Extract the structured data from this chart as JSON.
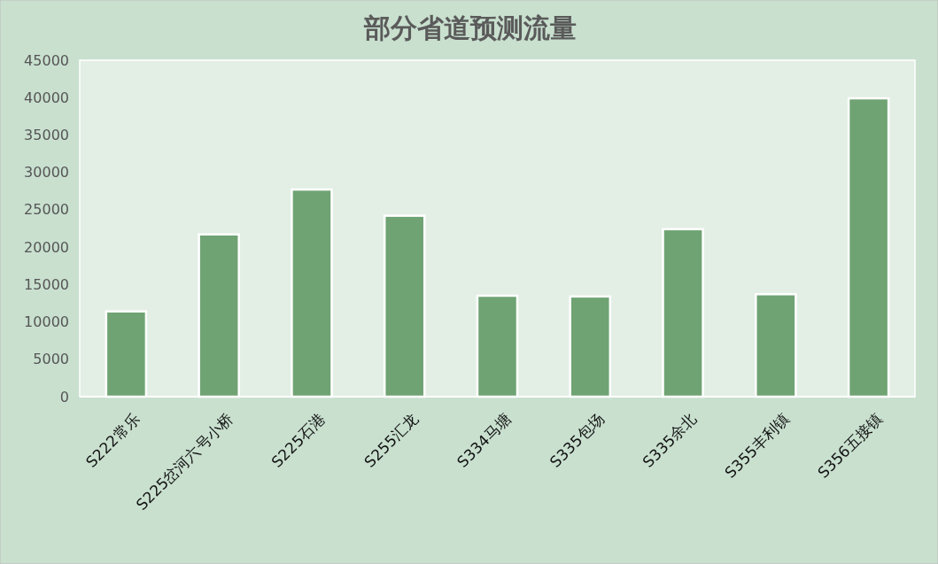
{
  "chart_data": {
    "type": "bar",
    "title": "部分省道预测流量",
    "categories": [
      "S222常乐",
      "S225岔河六号小桥",
      "S225石港",
      "S255汇龙",
      "S334马塘",
      "S335包场",
      "S335余北",
      "S355丰利镇",
      "S356五接镇"
    ],
    "values": [
      11400,
      21700,
      27700,
      24200,
      13500,
      13400,
      22400,
      13700,
      39900
    ],
    "color": "#6fa373",
    "ylim": [
      0,
      45000
    ],
    "yticks": [
      0,
      5000,
      10000,
      15000,
      20000,
      25000,
      30000,
      35000,
      40000,
      45000
    ],
    "grid": false
  }
}
